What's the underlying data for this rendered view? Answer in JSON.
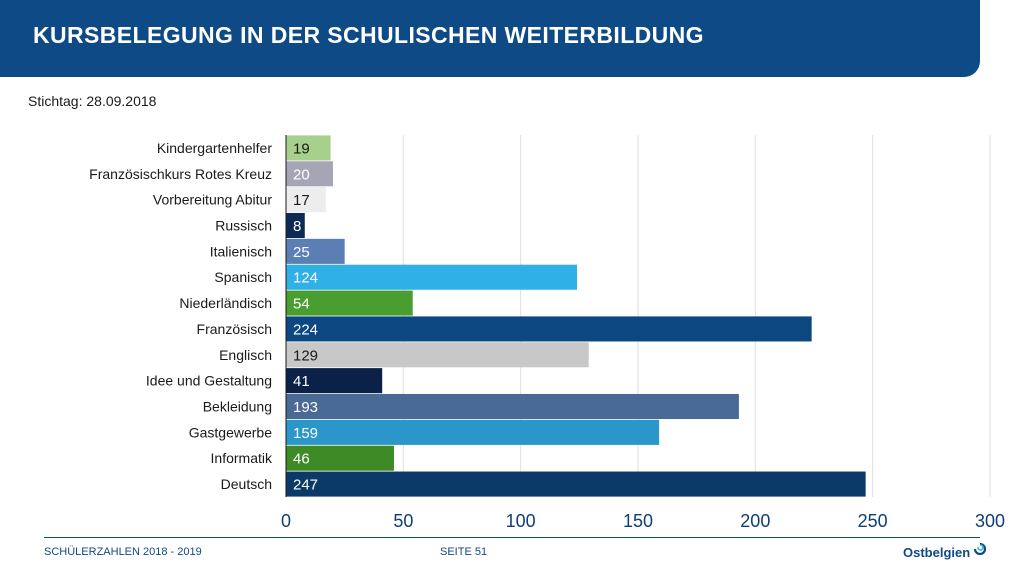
{
  "header": {
    "title": "KURSBELEGUNG IN DER SCHULISCHEN WEITERBILDUNG"
  },
  "subtitle": "Stichtag: 28.09.2018",
  "footer": {
    "left": "SCHÜLERZAHLEN 2018 - 2019",
    "page": "SEITE 51",
    "logo_text": "Ostbelgien"
  },
  "colors": {
    "header": "#0e4a85",
    "footer_text": "#0e4a85"
  },
  "chart_data": {
    "type": "bar",
    "orientation": "horizontal",
    "categories": [
      "Kindergartenhelfer",
      "Französischkurs Rotes Kreuz",
      "Vorbereitung Abitur",
      "Russisch",
      "Italienisch",
      "Spanisch",
      "Niederländisch",
      "Französisch",
      "Englisch",
      "Idee und Gestaltung",
      "Bekleidung",
      "Gastgewerbe",
      "Informatik",
      "Deutsch"
    ],
    "values": [
      19,
      20,
      17,
      8,
      25,
      124,
      54,
      224,
      129,
      41,
      193,
      159,
      46,
      247
    ],
    "bar_colors": [
      "#a8d08d",
      "#a5a5b5",
      "#ededed",
      "#0d2a55",
      "#5b7fb5",
      "#2fb0e6",
      "#4a9e2f",
      "#0c4781",
      "#c8c8c8",
      "#0b2147",
      "#4a6a96",
      "#2b96c9",
      "#3d8a26",
      "#0b3968"
    ],
    "label_colors": [
      "#1a1a1a",
      "#ffffff",
      "#1a1a1a",
      "#ffffff",
      "#ffffff",
      "#ffffff",
      "#ffffff",
      "#ffffff",
      "#1a1a1a",
      "#ffffff",
      "#ffffff",
      "#ffffff",
      "#ffffff",
      "#ffffff"
    ],
    "xlim": [
      0,
      300
    ],
    "xticks": [
      0,
      50,
      100,
      150,
      200,
      250,
      300
    ],
    "grid": true,
    "data_labels": "inside-start",
    "legend": "none"
  }
}
